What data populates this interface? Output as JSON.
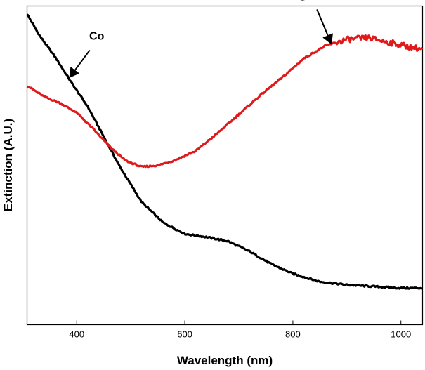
{
  "chart_data": {
    "type": "line",
    "title": "",
    "xlabel": "Wavelength (nm)",
    "ylabel": "Extinction (A.U.)",
    "xlim": [
      308,
      1040
    ],
    "ylim": [
      0,
      1
    ],
    "xticks": [
      400,
      600,
      800,
      1000
    ],
    "yticks": [],
    "grid": false,
    "series": [
      {
        "name": "Co",
        "color": "#000000",
        "x": [
          308,
          330,
          360,
          390,
          420,
          450,
          480,
          520,
          560,
          600,
          640,
          680,
          720,
          760,
          800,
          850,
          900,
          950,
          1000,
          1040
        ],
        "y": [
          0.975,
          0.91,
          0.84,
          0.76,
          0.685,
          0.59,
          0.495,
          0.385,
          0.32,
          0.285,
          0.275,
          0.262,
          0.23,
          0.19,
          0.16,
          0.135,
          0.125,
          0.12,
          0.115,
          0.115
        ]
      },
      {
        "name": "Au@Co",
        "color": "#e0191b",
        "x": [
          308,
          340,
          370,
          400,
          430,
          460,
          490,
          520,
          550,
          580,
          620,
          660,
          700,
          740,
          780,
          820,
          860,
          900,
          940,
          980,
          1020,
          1040
        ],
        "y": [
          0.75,
          0.715,
          0.695,
          0.665,
          0.615,
          0.56,
          0.515,
          0.495,
          0.5,
          0.515,
          0.545,
          0.6,
          0.66,
          0.72,
          0.775,
          0.835,
          0.875,
          0.895,
          0.9,
          0.885,
          0.87,
          0.865
        ]
      }
    ],
    "annotations": [
      {
        "text": "Co",
        "target_series": "Co",
        "target_x": 385
      },
      {
        "text": "Au@Co",
        "target_series": "Au@Co",
        "target_x": 868
      }
    ]
  }
}
